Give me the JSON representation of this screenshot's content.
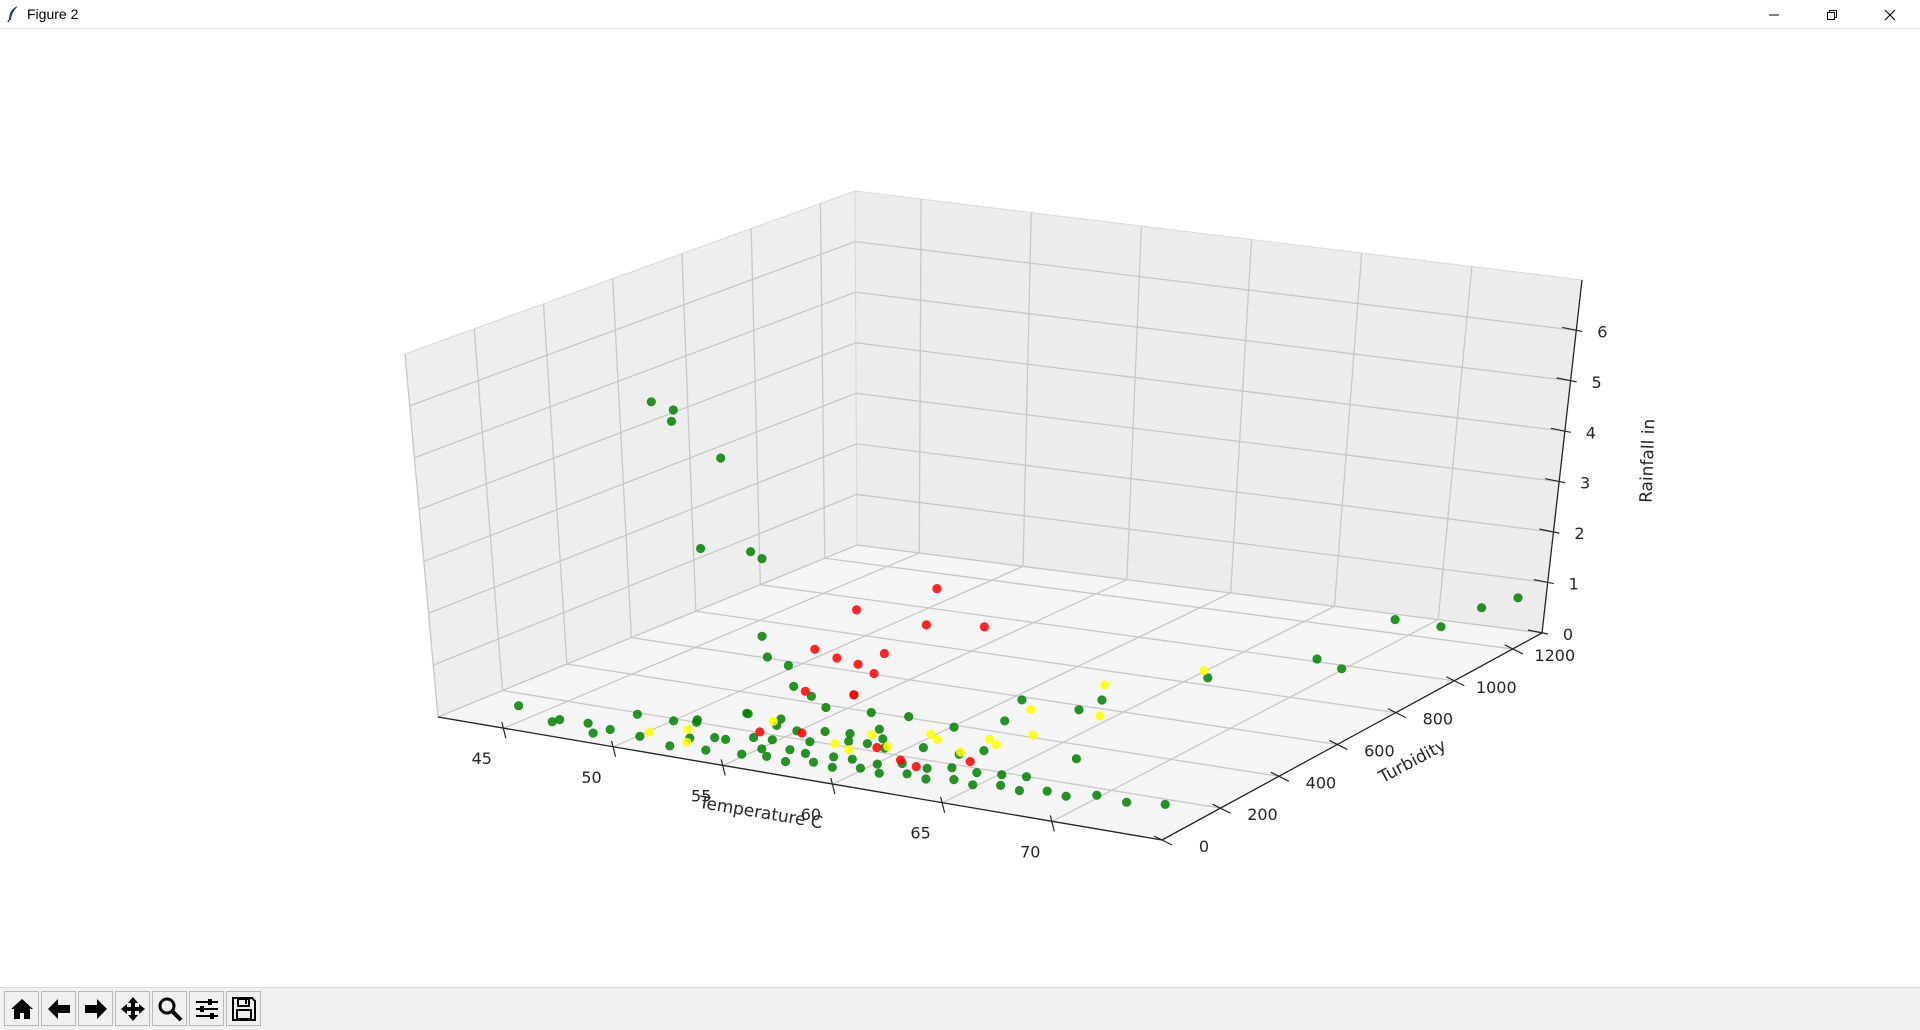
{
  "window": {
    "title": "Figure 2"
  },
  "window_controls": [
    "minimize",
    "restore",
    "close"
  ],
  "toolbar": {
    "buttons": [
      {
        "name": "home-button",
        "icon": "home-icon"
      },
      {
        "name": "back-button",
        "icon": "arrow-left-icon"
      },
      {
        "name": "forward-button",
        "icon": "arrow-right-icon"
      },
      {
        "name": "pan-button",
        "icon": "move-icon"
      },
      {
        "name": "zoom-button",
        "icon": "magnifier-icon"
      },
      {
        "name": "configure-subplots-button",
        "icon": "sliders-icon"
      },
      {
        "name": "save-button",
        "icon": "floppy-disk-icon"
      }
    ]
  },
  "chart_data": {
    "type": "scatter3d",
    "xlabel": "Temperature C",
    "ylabel": "Turbidity",
    "zlabel": "Rainfall in",
    "xlim": [
      42,
      75
    ],
    "ylim": [
      0,
      1300
    ],
    "zlim": [
      0,
      7
    ],
    "xticks": [
      45,
      50,
      55,
      60,
      65,
      70
    ],
    "yticks": [
      0,
      200,
      400,
      600,
      800,
      1000,
      1200
    ],
    "zticks": [
      0,
      1,
      2,
      3,
      4,
      5,
      6
    ],
    "grid": true,
    "colors": {
      "green": "#008000",
      "yellow": "#ffff00",
      "red": "#ff0000"
    },
    "series": [
      {
        "color": "green",
        "points": [
          [
            51.0,
            110,
            6.2
          ],
          [
            51.5,
            140,
            6.0
          ],
          [
            52.0,
            100,
            5.9
          ],
          [
            53.5,
            140,
            5.2
          ],
          [
            53.0,
            100,
            3.6
          ],
          [
            54.5,
            150,
            3.5
          ],
          [
            55.0,
            150,
            3.4
          ],
          [
            55.0,
            140,
            2.0
          ],
          [
            55.5,
            120,
            1.7
          ],
          [
            56.0,
            150,
            1.5
          ],
          [
            56.5,
            130,
            1.2
          ],
          [
            57.0,
            150,
            1.0
          ],
          [
            57.5,
            160,
            0.8
          ],
          [
            59.0,
            200,
            0.7
          ],
          [
            60.5,
            120,
            0.7
          ],
          [
            45.0,
            50,
            0.3
          ],
          [
            47.0,
            40,
            0.2
          ],
          [
            48.0,
            60,
            0.15
          ],
          [
            50.0,
            80,
            0.4
          ],
          [
            51.5,
            90,
            0.35
          ],
          [
            52.0,
            130,
            0.3
          ],
          [
            53.0,
            60,
            0.5
          ],
          [
            54.0,
            150,
            0.5
          ],
          [
            54.5,
            120,
            0.6
          ],
          [
            55.5,
            140,
            0.4
          ],
          [
            56.0,
            120,
            0.6
          ],
          [
            57.0,
            100,
            0.5
          ],
          [
            58.0,
            120,
            0.5
          ],
          [
            59.0,
            130,
            0.5
          ],
          [
            60.5,
            130,
            0.5
          ],
          [
            61.0,
            180,
            0.8
          ],
          [
            62.5,
            220,
            0.6
          ],
          [
            63.0,
            350,
            0.4
          ],
          [
            64.5,
            300,
            1.0
          ],
          [
            66.0,
            380,
            0.7
          ],
          [
            66.5,
            420,
            0.8
          ],
          [
            67.0,
            300,
            0.1
          ],
          [
            67.5,
            700,
            0.5
          ],
          [
            75.0,
            1200,
            1.0
          ],
          [
            74.0,
            1150,
            0.9
          ],
          [
            73.5,
            1050,
            0.8
          ],
          [
            72.0,
            1000,
            1.0
          ],
          [
            70.5,
            850,
            0.6
          ],
          [
            71.0,
            900,
            0.3
          ],
          [
            46.5,
            50,
            0.1
          ],
          [
            48.5,
            40,
            0.05
          ],
          [
            49.0,
            60,
            0.1
          ],
          [
            50.5,
            50,
            0.1
          ],
          [
            52.0,
            40,
            0.05
          ],
          [
            53.5,
            50,
            0.05
          ],
          [
            55.0,
            60,
            0.05
          ],
          [
            56.0,
            70,
            0.05
          ],
          [
            57.0,
            60,
            0.05
          ],
          [
            58.0,
            80,
            0.05
          ],
          [
            59.0,
            70,
            0.05
          ],
          [
            60.0,
            90,
            0.05
          ],
          [
            61.0,
            80,
            0.05
          ],
          [
            62.0,
            100,
            0.05
          ],
          [
            63.0,
            90,
            0.05
          ],
          [
            64.0,
            110,
            0.05
          ],
          [
            65.0,
            100,
            0.05
          ],
          [
            66.0,
            120,
            0.05
          ],
          [
            67.0,
            110,
            0.05
          ],
          [
            68.0,
            130,
            0.05
          ],
          [
            69.0,
            120,
            0.05
          ],
          [
            70.0,
            150,
            0.05
          ],
          [
            71.5,
            140,
            0.05
          ],
          [
            73.0,
            160,
            0.05
          ],
          [
            55.5,
            90,
            0.1
          ],
          [
            56.5,
            110,
            0.1
          ],
          [
            57.5,
            90,
            0.15
          ],
          [
            58.5,
            110,
            0.1
          ],
          [
            59.5,
            100,
            0.15
          ],
          [
            60.5,
            110,
            0.1
          ],
          [
            61.5,
            120,
            0.15
          ],
          [
            62.5,
            130,
            0.1
          ],
          [
            63.5,
            140,
            0.15
          ],
          [
            64.5,
            150,
            0.1
          ],
          [
            65.5,
            160,
            0.1
          ],
          [
            66.5,
            170,
            0.1
          ],
          [
            54.0,
            80,
            0.2
          ],
          [
            55.0,
            100,
            0.25
          ],
          [
            57.0,
            140,
            0.2
          ],
          [
            58.5,
            160,
            0.25
          ],
          [
            60.0,
            170,
            0.2
          ],
          [
            61.5,
            190,
            0.25
          ],
          [
            63.0,
            200,
            0.2
          ],
          [
            64.0,
            210,
            0.3
          ],
          [
            52.5,
            70,
            0.15
          ],
          [
            53.5,
            80,
            0.2
          ],
          [
            56.0,
            90,
            0.3
          ],
          [
            59.5,
            150,
            0.3
          ]
        ]
      },
      {
        "color": "yellow",
        "points": [
          [
            50.5,
            80,
            0.1
          ],
          [
            52.0,
            100,
            0.2
          ],
          [
            52.5,
            60,
            0.1
          ],
          [
            55.5,
            130,
            0.5
          ],
          [
            58.0,
            150,
            0.2
          ],
          [
            59.0,
            200,
            0.3
          ],
          [
            60.0,
            180,
            0.2
          ],
          [
            61.0,
            250,
            0.3
          ],
          [
            62.0,
            200,
            0.4
          ],
          [
            63.0,
            300,
            0.2
          ],
          [
            64.0,
            250,
            0.3
          ],
          [
            65.0,
            300,
            0.4
          ],
          [
            63.5,
            400,
            0.5
          ],
          [
            66.0,
            450,
            0.4
          ],
          [
            65.5,
            500,
            0.8
          ],
          [
            68.0,
            650,
            0.8
          ],
          [
            58.5,
            160,
            0.1
          ],
          [
            62.5,
            240,
            0.1
          ]
        ]
      },
      {
        "color": "red",
        "points": [
          [
            58.5,
            450,
            2.3
          ],
          [
            57.0,
            300,
            2.2
          ],
          [
            57.5,
            200,
            1.6
          ],
          [
            58.0,
            450,
            1.6
          ],
          [
            56.5,
            200,
            1.7
          ],
          [
            57.5,
            350,
            1.3
          ],
          [
            57.0,
            300,
            1.2
          ],
          [
            58.5,
            600,
            1.2
          ],
          [
            57.0,
            350,
            0.9
          ],
          [
            57.5,
            250,
            0.8
          ],
          [
            56.0,
            200,
            0.9
          ],
          [
            57.5,
            250,
            0.8
          ],
          [
            55.0,
            120,
            0.3
          ],
          [
            56.5,
            150,
            0.3
          ],
          [
            59.5,
            180,
            0.15
          ],
          [
            62.0,
            130,
            0.1
          ],
          [
            63.5,
            200,
            0.1
          ],
          [
            61.0,
            150,
            0.1
          ]
        ]
      }
    ]
  }
}
